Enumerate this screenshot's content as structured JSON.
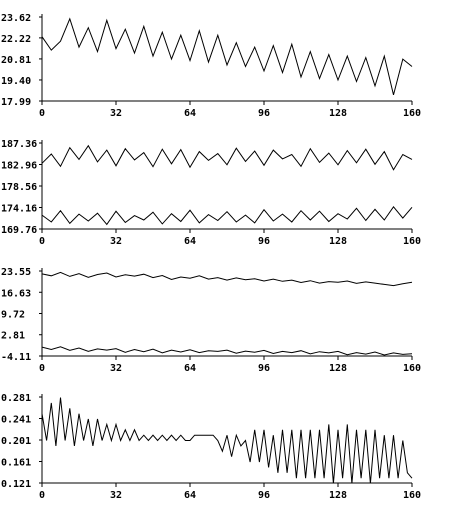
{
  "chart_data": [
    {
      "type": "line",
      "title": "",
      "xlabel": "",
      "ylabel": "",
      "xlim": [
        0,
        160
      ],
      "ylim": [
        17.99,
        23.62
      ],
      "x_ticks": [
        0,
        32,
        64,
        96,
        128,
        160
      ],
      "x_tick_labels": [
        "0",
        "32",
        "64",
        "96",
        "128",
        "160"
      ],
      "y_ticks": [
        17.99,
        19.4,
        20.81,
        22.22,
        23.62
      ],
      "y_tick_labels": [
        "17.99",
        "19.40",
        "20.81",
        "22.22",
        "23.62"
      ],
      "grid": false,
      "series": [
        {
          "x": [
            0,
            4,
            8,
            12,
            16,
            20,
            24,
            28,
            32,
            36,
            40,
            44,
            48,
            52,
            56,
            60,
            64,
            68,
            72,
            76,
            80,
            84,
            88,
            92,
            96,
            100,
            104,
            108,
            112,
            116,
            120,
            124,
            128,
            132,
            136,
            140,
            144,
            148,
            152,
            156,
            160
          ],
          "values": [
            22.3,
            21.4,
            22.0,
            23.5,
            21.6,
            22.9,
            21.3,
            23.4,
            21.5,
            22.8,
            21.2,
            23.0,
            21.0,
            22.6,
            20.8,
            22.4,
            20.7,
            22.7,
            20.6,
            22.4,
            20.4,
            21.9,
            20.3,
            21.6,
            20.0,
            21.7,
            19.9,
            21.8,
            19.6,
            21.3,
            19.5,
            21.1,
            19.4,
            21.0,
            19.3,
            20.9,
            19.0,
            21.0,
            18.4,
            20.8,
            20.3
          ]
        }
      ]
    },
    {
      "type": "line",
      "title": "",
      "xlabel": "",
      "ylabel": "",
      "xlim": [
        0,
        160
      ],
      "ylim": [
        169.76,
        187.36
      ],
      "x_ticks": [
        0,
        32,
        64,
        96,
        128,
        160
      ],
      "x_tick_labels": [
        "0",
        "32",
        "64",
        "96",
        "128",
        "160"
      ],
      "y_ticks": [
        169.76,
        174.16,
        178.56,
        182.96,
        187.36
      ],
      "y_tick_labels": [
        "169.76",
        "174.16",
        "178.56",
        "182.96",
        "187.36"
      ],
      "grid": false,
      "series": [
        {
          "x": [
            0,
            4,
            8,
            12,
            16,
            20,
            24,
            28,
            32,
            36,
            40,
            44,
            48,
            52,
            56,
            60,
            64,
            68,
            72,
            76,
            80,
            84,
            88,
            92,
            96,
            100,
            104,
            108,
            112,
            116,
            120,
            124,
            128,
            132,
            136,
            140,
            144,
            148,
            152,
            156,
            160
          ],
          "values": [
            183.2,
            185.1,
            182.6,
            186.4,
            184.0,
            186.8,
            183.5,
            185.9,
            182.7,
            186.2,
            183.9,
            185.4,
            182.5,
            186.1,
            183.1,
            186.0,
            182.4,
            185.6,
            183.8,
            185.2,
            182.9,
            186.3,
            183.6,
            185.7,
            182.8,
            185.9,
            184.1,
            185.0,
            182.6,
            186.2,
            183.4,
            185.3,
            182.9,
            185.8,
            183.3,
            186.1,
            183.0,
            185.6,
            181.9,
            185.0,
            184.0
          ]
        },
        {
          "x": [
            0,
            4,
            8,
            12,
            16,
            20,
            24,
            28,
            32,
            36,
            40,
            44,
            48,
            52,
            56,
            60,
            64,
            68,
            72,
            76,
            80,
            84,
            88,
            92,
            96,
            100,
            104,
            108,
            112,
            116,
            120,
            124,
            128,
            132,
            136,
            140,
            144,
            148,
            152,
            156,
            160
          ],
          "values": [
            172.6,
            171.2,
            173.5,
            170.9,
            172.8,
            171.4,
            173.0,
            170.7,
            173.4,
            171.1,
            172.5,
            171.6,
            173.2,
            170.8,
            172.9,
            171.3,
            173.6,
            171.0,
            172.7,
            171.5,
            173.3,
            171.2,
            172.6,
            171.0,
            173.7,
            171.4,
            172.8,
            171.2,
            173.5,
            171.6,
            173.4,
            171.3,
            172.9,
            171.8,
            174.0,
            171.5,
            173.8,
            171.6,
            174.3,
            172.0,
            174.2
          ]
        }
      ]
    },
    {
      "type": "line",
      "title": "",
      "xlabel": "",
      "ylabel": "",
      "xlim": [
        0,
        160
      ],
      "ylim": [
        -4.11,
        23.55
      ],
      "x_ticks": [
        0,
        32,
        64,
        96,
        128,
        160
      ],
      "x_tick_labels": [
        "0",
        "32",
        "64",
        "96",
        "128",
        "160"
      ],
      "y_ticks": [
        -4.11,
        2.81,
        9.72,
        16.63,
        23.55
      ],
      "y_tick_labels": [
        "-4.11",
        "2.81",
        "9.72",
        "16.63",
        "23.55"
      ],
      "grid": false,
      "series": [
        {
          "x": [
            0,
            4,
            8,
            12,
            16,
            20,
            24,
            28,
            32,
            36,
            40,
            44,
            48,
            52,
            56,
            60,
            64,
            68,
            72,
            76,
            80,
            84,
            88,
            92,
            96,
            100,
            104,
            108,
            112,
            116,
            120,
            124,
            128,
            132,
            136,
            140,
            144,
            148,
            152,
            156,
            160
          ],
          "values": [
            22.6,
            22.0,
            23.1,
            21.8,
            22.7,
            21.5,
            22.4,
            22.9,
            21.6,
            22.3,
            21.9,
            22.5,
            21.4,
            22.1,
            20.8,
            21.6,
            21.2,
            22.0,
            20.9,
            21.4,
            20.6,
            21.3,
            20.7,
            21.0,
            20.3,
            20.9,
            20.2,
            20.6,
            19.8,
            20.4,
            19.6,
            20.1,
            19.9,
            20.3,
            19.5,
            20.0,
            19.6,
            19.2,
            18.8,
            19.4,
            19.9
          ]
        },
        {
          "x": [
            0,
            4,
            8,
            12,
            16,
            20,
            24,
            28,
            32,
            36,
            40,
            44,
            48,
            52,
            56,
            60,
            64,
            68,
            72,
            76,
            80,
            84,
            88,
            92,
            96,
            100,
            104,
            108,
            112,
            116,
            120,
            124,
            128,
            132,
            136,
            140,
            144,
            148,
            152,
            156,
            160
          ],
          "values": [
            -1.2,
            -2.0,
            -1.1,
            -2.3,
            -1.5,
            -2.6,
            -1.8,
            -2.2,
            -1.7,
            -2.9,
            -2.0,
            -2.7,
            -1.9,
            -3.1,
            -2.2,
            -2.8,
            -2.1,
            -3.0,
            -2.4,
            -2.6,
            -2.2,
            -3.2,
            -2.5,
            -2.9,
            -2.3,
            -3.3,
            -2.6,
            -3.0,
            -2.4,
            -3.4,
            -2.7,
            -3.1,
            -2.6,
            -3.7,
            -3.0,
            -3.5,
            -2.8,
            -3.8,
            -3.1,
            -3.6,
            -3.4
          ]
        }
      ]
    },
    {
      "type": "line",
      "title": "",
      "xlabel": "",
      "ylabel": "",
      "xlim": [
        0,
        160
      ],
      "ylim": [
        0.121,
        0.281
      ],
      "x_ticks": [
        0,
        32,
        64,
        96,
        128,
        160
      ],
      "x_tick_labels": [
        "0",
        "32",
        "64",
        "96",
        "128",
        "160"
      ],
      "y_ticks": [
        0.121,
        0.161,
        0.201,
        0.241,
        0.281
      ],
      "y_tick_labels": [
        "0.121",
        "0.161",
        "0.201",
        "0.241",
        "0.281"
      ],
      "grid": false,
      "series": [
        {
          "x": [
            0,
            2,
            4,
            6,
            8,
            10,
            12,
            14,
            16,
            18,
            20,
            22,
            24,
            26,
            28,
            30,
            32,
            34,
            36,
            38,
            40,
            42,
            44,
            46,
            48,
            50,
            52,
            54,
            56,
            58,
            60,
            62,
            64,
            66,
            68,
            70,
            72,
            74,
            76,
            78,
            80,
            82,
            84,
            86,
            88,
            90,
            92,
            94,
            96,
            98,
            100,
            102,
            104,
            106,
            108,
            110,
            112,
            114,
            116,
            118,
            120,
            122,
            124,
            126,
            128,
            130,
            132,
            134,
            136,
            138,
            140,
            142,
            144,
            146,
            148,
            150,
            152,
            154,
            156,
            158,
            160
          ],
          "values": [
            0.25,
            0.2,
            0.27,
            0.19,
            0.28,
            0.2,
            0.26,
            0.19,
            0.25,
            0.2,
            0.24,
            0.19,
            0.24,
            0.2,
            0.23,
            0.2,
            0.23,
            0.2,
            0.22,
            0.2,
            0.22,
            0.2,
            0.21,
            0.2,
            0.21,
            0.2,
            0.21,
            0.2,
            0.21,
            0.2,
            0.21,
            0.2,
            0.2,
            0.21,
            0.21,
            0.21,
            0.21,
            0.21,
            0.2,
            0.18,
            0.21,
            0.17,
            0.21,
            0.19,
            0.2,
            0.16,
            0.22,
            0.16,
            0.22,
            0.15,
            0.21,
            0.14,
            0.22,
            0.14,
            0.22,
            0.13,
            0.22,
            0.13,
            0.22,
            0.13,
            0.22,
            0.13,
            0.23,
            0.12,
            0.22,
            0.13,
            0.23,
            0.12,
            0.22,
            0.13,
            0.22,
            0.12,
            0.22,
            0.13,
            0.21,
            0.13,
            0.21,
            0.13,
            0.2,
            0.14,
            0.13
          ]
        }
      ]
    }
  ]
}
